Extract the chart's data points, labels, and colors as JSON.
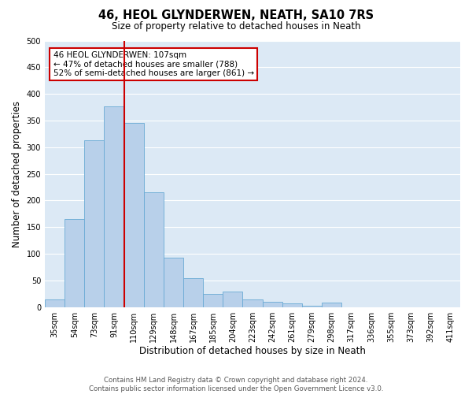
{
  "title": "46, HEOL GLYNDERWEN, NEATH, SA10 7RS",
  "subtitle": "Size of property relative to detached houses in Neath",
  "xlabel": "Distribution of detached houses by size in Neath",
  "ylabel": "Number of detached properties",
  "bar_labels": [
    "35sqm",
    "54sqm",
    "73sqm",
    "91sqm",
    "110sqm",
    "129sqm",
    "148sqm",
    "167sqm",
    "185sqm",
    "204sqm",
    "223sqm",
    "242sqm",
    "261sqm",
    "279sqm",
    "298sqm",
    "317sqm",
    "336sqm",
    "355sqm",
    "373sqm",
    "392sqm",
    "411sqm"
  ],
  "bar_values": [
    15,
    165,
    313,
    377,
    345,
    215,
    93,
    55,
    25,
    29,
    14,
    10,
    7,
    2,
    8,
    0,
    0,
    0,
    0,
    0,
    0
  ],
  "bar_color": "#b8d0ea",
  "bar_edgecolor": "#6aaad4",
  "vline_color": "#cc0000",
  "annotation_text": "46 HEOL GLYNDERWEN: 107sqm\n← 47% of detached houses are smaller (788)\n52% of semi-detached houses are larger (861) →",
  "annotation_box_color": "#cc0000",
  "ylim": [
    0,
    500
  ],
  "yticks": [
    0,
    50,
    100,
    150,
    200,
    250,
    300,
    350,
    400,
    450,
    500
  ],
  "footer_text": "Contains HM Land Registry data © Crown copyright and database right 2024.\nContains public sector information licensed under the Open Government Licence v3.0.",
  "plot_bg_color": "#dce9f5",
  "grid_color": "#ffffff",
  "figsize": [
    6.0,
    5.0
  ],
  "dpi": 100
}
